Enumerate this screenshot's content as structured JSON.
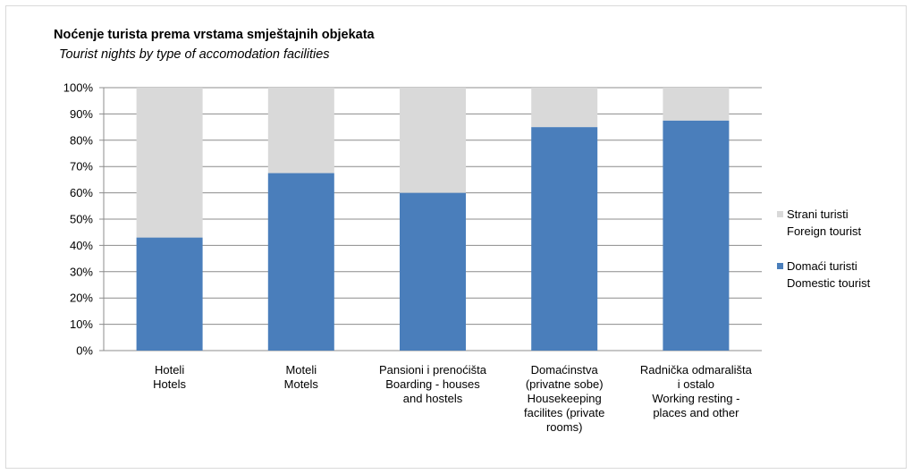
{
  "chart_data": {
    "type": "bar",
    "stacked": true,
    "percent_stacked": true,
    "title": "Noćenje turista prema vrstama smještajnih objekata",
    "subtitle": "Tourist nights by type of accomodation facilities",
    "categories": [
      [
        "Hoteli",
        "Hotels"
      ],
      [
        "Moteli",
        "Motels"
      ],
      [
        "Pansioni  i  prenoćišta",
        "Boarding - houses",
        "and hostels"
      ],
      [
        "Domaćinstva",
        "(privatne sobe)",
        "Housekeeping",
        "facilites (private",
        "rooms)"
      ],
      [
        "Radnička odmarališta",
        "i ostalo",
        "Working resting -",
        "places and other"
      ]
    ],
    "series": [
      {
        "name": [
          "Domaći turisti",
          "Domestic tourist"
        ],
        "color": "#4a7ebb",
        "values": [
          43,
          67.5,
          60,
          85,
          87.5
        ]
      },
      {
        "name": [
          "Strani turisti",
          "Foreign tourist"
        ],
        "color": "#d9d9d9",
        "values": [
          57,
          32.5,
          40,
          15,
          12.5
        ]
      }
    ],
    "ylim": [
      0,
      100
    ],
    "yticks": [
      "0%",
      "10%",
      "20%",
      "30%",
      "40%",
      "50%",
      "60%",
      "70%",
      "80%",
      "90%",
      "100%"
    ],
    "grid": true,
    "legend_position": "right"
  }
}
